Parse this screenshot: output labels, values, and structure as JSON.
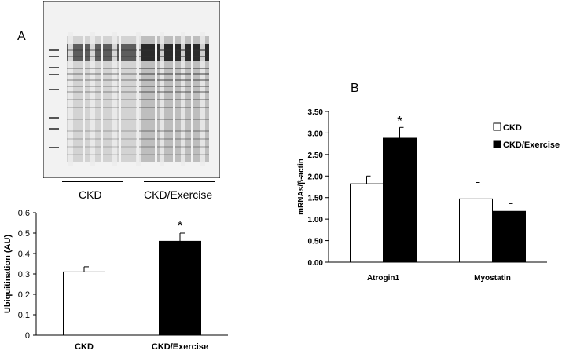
{
  "panels": {
    "a_letter": "A",
    "b_letter": "B"
  },
  "blot": {
    "group_labels": [
      "CKD",
      "CKD/Exercise"
    ],
    "lanes": 8
  },
  "colors": {
    "ckd": "#ffffff",
    "ckd_exercise": "#000000",
    "axis": "#000000"
  },
  "chart_data": [
    {
      "id": "ubiquitination",
      "type": "bar",
      "categories": [
        "CKD",
        "CKD/Exercise"
      ],
      "values": [
        0.31,
        0.46
      ],
      "errors": [
        0.025,
        0.04
      ],
      "colors": [
        "#ffffff",
        "#000000"
      ],
      "significance": [
        "",
        "*"
      ],
      "ylabel": "Ubiquitination (AU)",
      "xlabel": "",
      "title": "",
      "ylim": [
        0,
        0.6
      ],
      "yticks": [
        "0",
        "0.1",
        "0.2",
        "0.3",
        "0.4",
        "0.5",
        "0.6"
      ]
    },
    {
      "id": "mrna",
      "type": "bar",
      "categories": [
        "Atrogin1",
        "Myostatin"
      ],
      "series": [
        {
          "name": "CKD",
          "values": [
            1.82,
            1.47
          ],
          "errors": [
            0.18,
            0.38
          ],
          "color": "#ffffff"
        },
        {
          "name": "CKD/Exercise",
          "values": [
            2.88,
            1.18
          ],
          "errors": [
            0.25,
            0.18
          ],
          "color": "#000000"
        }
      ],
      "significance": [
        [
          "",
          "*"
        ],
        [
          "",
          ""
        ]
      ],
      "ylabel": "mRNAs/β-actin",
      "xlabel": "",
      "title": "",
      "ylim": [
        0,
        3.5
      ],
      "yticks": [
        "0.00",
        "0.50",
        "1.00",
        "1.50",
        "2.00",
        "2.50",
        "3.00",
        "3.50"
      ],
      "legend": "right"
    }
  ]
}
